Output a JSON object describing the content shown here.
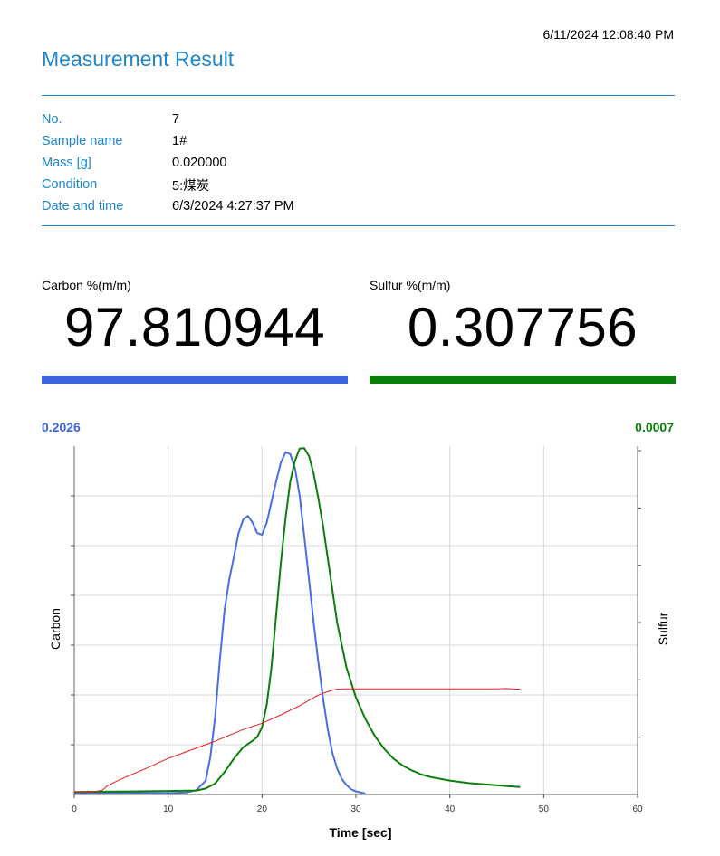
{
  "header": {
    "timestamp": "6/11/2024 12:08:40 PM",
    "title": "Measurement Result"
  },
  "info": [
    {
      "label": "No.",
      "value": "7"
    },
    {
      "label": "Sample name",
      "value": "1#"
    },
    {
      "label": "Mass [g]",
      "value": "0.020000"
    },
    {
      "label": "Condition",
      "value": "5:煤炭"
    },
    {
      "label": "Date and time",
      "value": "6/3/2024 4:27:37 PM"
    }
  ],
  "results": {
    "carbon": {
      "label": "Carbon %(m/m)",
      "value": "97.810944",
      "color": "#3d63dd"
    },
    "sulfur": {
      "label": "Sulfur %(m/m)",
      "value": "0.307756",
      "color": "#0b7e0b"
    }
  },
  "chart_data": {
    "type": "line",
    "xlabel": "Time [sec]",
    "y_left_label": "Carbon",
    "y_right_label": "Sulfur",
    "y_left_max_label": "0.2026",
    "y_right_max_label": "0.0007",
    "xlim": [
      0,
      60
    ],
    "x_ticks": [
      0,
      10,
      20,
      30,
      40,
      50,
      60
    ],
    "y_left_lim": [
      0,
      0.2026
    ],
    "y_right_lim": [
      0,
      0.0007
    ],
    "grid": true,
    "series": [
      {
        "axis": "left",
        "color": "#4a6ee0",
        "x": [
          0,
          5,
          10,
          12,
          13,
          14,
          14.5,
          15,
          15.5,
          16,
          16.5,
          17,
          17.5,
          18,
          18.5,
          19,
          19.5,
          20,
          20.5,
          21,
          21.5,
          22,
          22.5,
          23,
          23.5,
          24,
          24.5,
          25,
          25.5,
          26,
          26.5,
          27,
          27.5,
          28,
          28.5,
          29,
          29.5,
          30,
          31
        ],
        "y": [
          0.0007,
          0.0008,
          0.0008,
          0.0012,
          0.0025,
          0.008,
          0.022,
          0.045,
          0.078,
          0.107,
          0.125,
          0.138,
          0.152,
          0.16,
          0.162,
          0.158,
          0.152,
          0.151,
          0.158,
          0.17,
          0.182,
          0.193,
          0.199,
          0.198,
          0.19,
          0.174,
          0.15,
          0.125,
          0.1,
          0.077,
          0.056,
          0.038,
          0.024,
          0.015,
          0.009,
          0.0055,
          0.003,
          0.0018,
          0.0006
        ]
      },
      {
        "axis": "right",
        "color": "#0b7e0b",
        "x": [
          0,
          5,
          10,
          13,
          14,
          15,
          16,
          17,
          18,
          19,
          19.5,
          20,
          20.5,
          21,
          21.5,
          22,
          22.5,
          23,
          23.5,
          24,
          24.5,
          25,
          25.5,
          26,
          26.5,
          27,
          27.5,
          28,
          29,
          30,
          31,
          32,
          33,
          34,
          35,
          36,
          37,
          38,
          40,
          42,
          44,
          46,
          47.5
        ],
        "y": [
          5e-06,
          6e-06,
          7e-06,
          8e-06,
          1.2e-05,
          2.2e-05,
          4.5e-05,
          7.2e-05,
          9.5e-05,
          0.000108,
          0.000116,
          0.000135,
          0.00018,
          0.000255,
          0.00036,
          0.000465,
          0.000555,
          0.000628,
          0.00067,
          0.000695,
          0.000696,
          0.00068,
          0.000645,
          0.000595,
          0.00054,
          0.000475,
          0.00041,
          0.000345,
          0.000255,
          0.000195,
          0.000152,
          0.000118,
          9.2e-05,
          7.2e-05,
          5.8e-05,
          4.8e-05,
          4e-05,
          3.5e-05,
          2.8e-05,
          2.3e-05,
          2e-05,
          1.7e-05,
          1.5e-05
        ]
      },
      {
        "axis": "left",
        "color": "#e81e1e",
        "x": [
          0,
          2,
          3,
          3.5,
          5,
          8,
          10,
          12,
          15,
          18,
          20,
          22,
          24,
          25,
          26,
          27,
          28,
          29,
          30,
          35,
          40,
          45,
          46,
          47,
          47.5
        ],
        "y": [
          0.0014,
          0.0014,
          0.0025,
          0.005,
          0.009,
          0.016,
          0.021,
          0.025,
          0.031,
          0.0378,
          0.0414,
          0.0463,
          0.0516,
          0.0548,
          0.0578,
          0.0598,
          0.0613,
          0.0614,
          0.0614,
          0.0614,
          0.0614,
          0.0614,
          0.0616,
          0.0613,
          0.0613
        ]
      }
    ]
  }
}
